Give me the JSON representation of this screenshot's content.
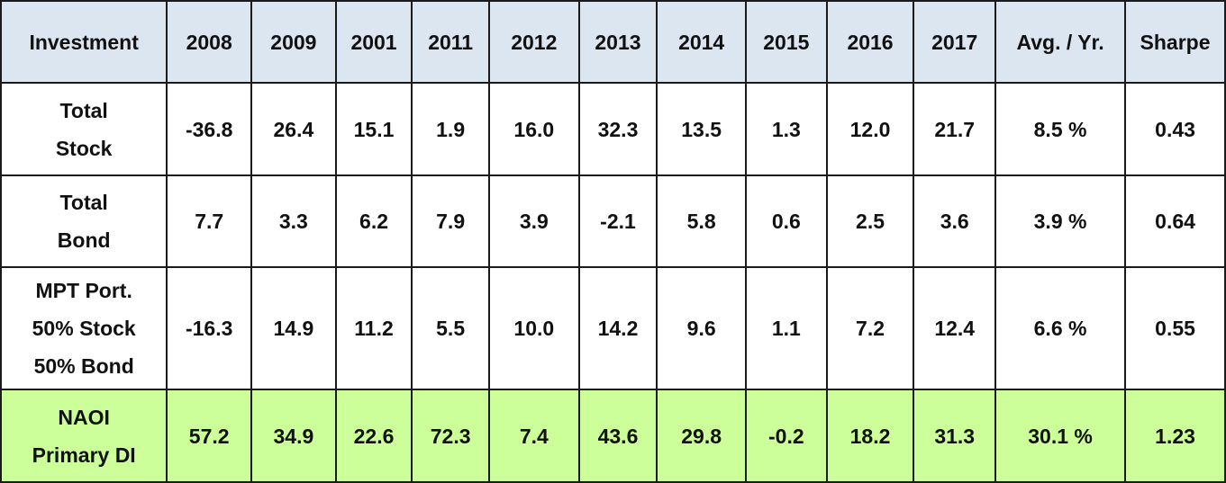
{
  "chart_data": {
    "type": "table",
    "columns": [
      "Investment",
      "2008",
      "2009",
      "2001",
      "2011",
      "2012",
      "2013",
      "2014",
      "2015",
      "2016",
      "2017",
      "Avg. / Yr.",
      "Sharpe"
    ],
    "rows": [
      {
        "label_lines": [
          "Total",
          "Stock"
        ],
        "values": [
          "-36.8",
          "26.4",
          "15.1",
          "1.9",
          "16.0",
          "32.3",
          "13.5",
          "1.3",
          "12.0",
          "21.7"
        ],
        "avg": "8.5 %",
        "sharpe": "0.43"
      },
      {
        "label_lines": [
          "Total",
          "Bond"
        ],
        "values": [
          "7.7",
          "3.3",
          "6.2",
          "7.9",
          "3.9",
          "-2.1",
          "5.8",
          "0.6",
          "2.5",
          "3.6"
        ],
        "avg": "3.9 %",
        "sharpe": "0.64"
      },
      {
        "label_lines": [
          "MPT Port.",
          "50% Stock",
          "50% Bond"
        ],
        "values": [
          "-16.3",
          "14.9",
          "11.2",
          "5.5",
          "10.0",
          "14.2",
          "9.6",
          "1.1",
          "7.2",
          "12.4"
        ],
        "avg": "6.6 %",
        "sharpe": "0.55"
      },
      {
        "label_lines": [
          "NAOI",
          "Primary DI"
        ],
        "values": [
          "57.2",
          "34.9",
          "22.6",
          "72.3",
          "7.4",
          "43.6",
          "29.8",
          "-0.2",
          "18.2",
          "31.3"
        ],
        "avg": "30.1 %",
        "sharpe": "1.23",
        "highlighted": true
      }
    ]
  },
  "colors": {
    "header_bg": "#dce6f1",
    "highlight_bg": "#ccff99",
    "body_bg": "#ffffff",
    "border": "#1a1a1a",
    "text": "#111111"
  }
}
